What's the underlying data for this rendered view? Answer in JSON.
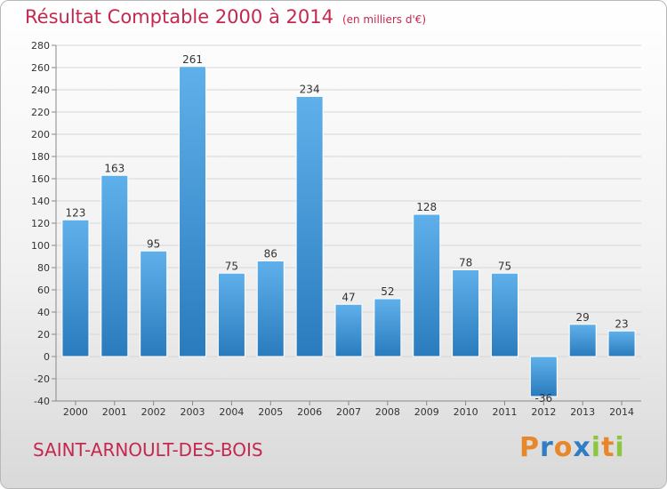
{
  "title": "Résultat Comptable 2000 à 2014",
  "subtitle": "(en milliers d'€)",
  "commune": "SAINT-ARNOULT-DES-BOIS",
  "brand": {
    "text": "Proxiti",
    "letters": [
      {
        "ch": "P",
        "color": "#e8872a"
      },
      {
        "ch": "r",
        "color": "#2f7dc4"
      },
      {
        "ch": "o",
        "color": "#e8872a"
      },
      {
        "ch": "x",
        "color": "#2f7dc4"
      },
      {
        "ch": "i",
        "color": "#8cc63f"
      },
      {
        "ch": "t",
        "color": "#e8872a"
      },
      {
        "ch": "i",
        "color": "#8cc63f"
      }
    ]
  },
  "colors": {
    "bar_top": "#5fb0ea",
    "bar_bottom": "#2a7bbd",
    "grid": "#d6d6d6",
    "title": "#c4284f"
  },
  "chart_data": {
    "type": "bar",
    "title": "Résultat Comptable 2000 à 2014",
    "ylabel": "(en milliers d'€)",
    "xlabel": "",
    "categories": [
      "2000",
      "2001",
      "2002",
      "2003",
      "2004",
      "2005",
      "2006",
      "2007",
      "2008",
      "2009",
      "2010",
      "2011",
      "2012",
      "2013",
      "2014"
    ],
    "values": [
      123,
      163,
      95,
      261,
      75,
      86,
      234,
      47,
      52,
      128,
      78,
      75,
      -36,
      29,
      23
    ],
    "ylim": [
      -40,
      280
    ],
    "yticks": [
      -40,
      -20,
      0,
      20,
      40,
      60,
      80,
      100,
      120,
      140,
      160,
      180,
      200,
      220,
      240,
      260,
      280
    ],
    "grid": true
  }
}
